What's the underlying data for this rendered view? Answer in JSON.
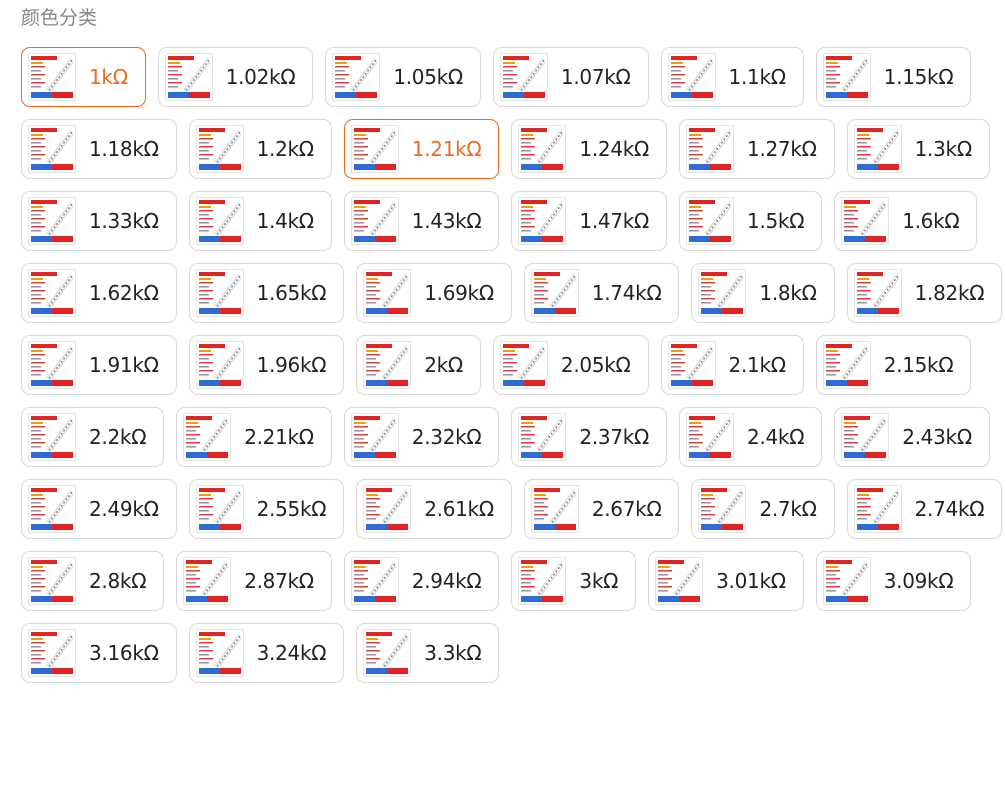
{
  "section_title": "颜色分类",
  "selected_index": 0,
  "highlight_color": "#f06a1f",
  "thumbnail_icon": "resistor-product-thumbnail",
  "options": [
    "1kΩ",
    "1.02kΩ",
    "1.05kΩ",
    "1.07kΩ",
    "1.1kΩ",
    "1.15kΩ",
    "1.18kΩ",
    "1.2kΩ",
    "1.21kΩ",
    "1.24kΩ",
    "1.27kΩ",
    "1.3kΩ",
    "1.33kΩ",
    "1.4kΩ",
    "1.43kΩ",
    "1.47kΩ",
    "1.5kΩ",
    "1.6kΩ",
    "1.62kΩ",
    "1.65kΩ",
    "1.69kΩ",
    "1.74kΩ",
    "1.8kΩ",
    "1.82kΩ",
    "1.91kΩ",
    "1.96kΩ",
    "2kΩ",
    "2.05kΩ",
    "2.1kΩ",
    "2.15kΩ",
    "2.2kΩ",
    "2.21kΩ",
    "2.32kΩ",
    "2.37kΩ",
    "2.4kΩ",
    "2.43kΩ",
    "2.49kΩ",
    "2.55kΩ",
    "2.61kΩ",
    "2.67kΩ",
    "2.7kΩ",
    "2.74kΩ",
    "2.8kΩ",
    "2.87kΩ",
    "2.94kΩ",
    "3kΩ",
    "3.01kΩ",
    "3.09kΩ",
    "3.16kΩ",
    "3.24kΩ",
    "3.3kΩ"
  ],
  "highlighted_options": [
    "1.21kΩ"
  ]
}
